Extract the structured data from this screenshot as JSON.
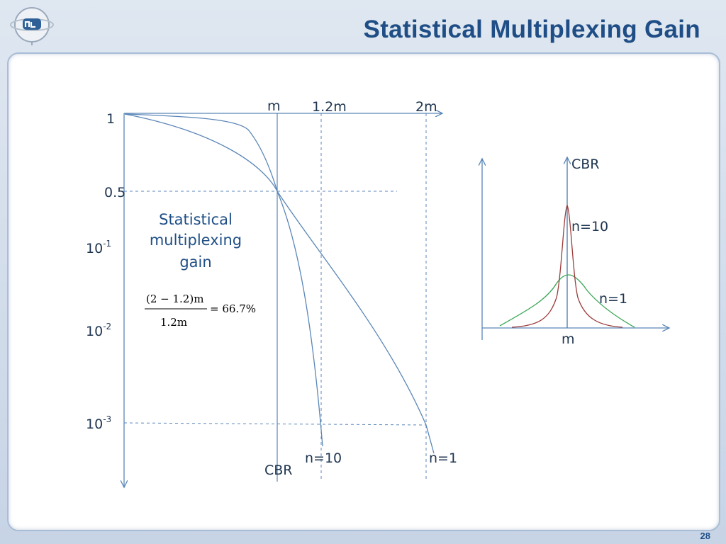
{
  "title": "Statistical Multiplexing Gain",
  "page_number": "28",
  "left_plot": {
    "x_ticks": [
      "m",
      "1.2m",
      "2m"
    ],
    "y_ticks": [
      {
        "base": "1",
        "exp": ""
      },
      {
        "base": "0.5",
        "exp": ""
      },
      {
        "base": "10",
        "exp": "-1"
      },
      {
        "base": "10",
        "exp": "-2"
      },
      {
        "base": "10",
        "exp": "-3"
      }
    ],
    "curve_labels": {
      "cbr": "CBR",
      "n10": "n=10",
      "n1": "n=1"
    },
    "annotation": [
      "Statistical",
      "multiplexing",
      "gain"
    ],
    "formula": {
      "numerator": "(2 − 1.2)m",
      "denominator": "1.2m",
      "result": "= 66.7%"
    }
  },
  "right_plot": {
    "labels": {
      "cbr": "CBR",
      "n10": "n=10",
      "n1": "n=1",
      "x_tick": "m"
    },
    "colors": {
      "n10": "#9b3b3b",
      "n1": "#3aa655",
      "cbr": "#4a78ad"
    }
  },
  "colors": {
    "axis": "#5b86b8",
    "curve": "#5b86b8",
    "guide": "#5b86b8",
    "title": "#1f4e86"
  }
}
